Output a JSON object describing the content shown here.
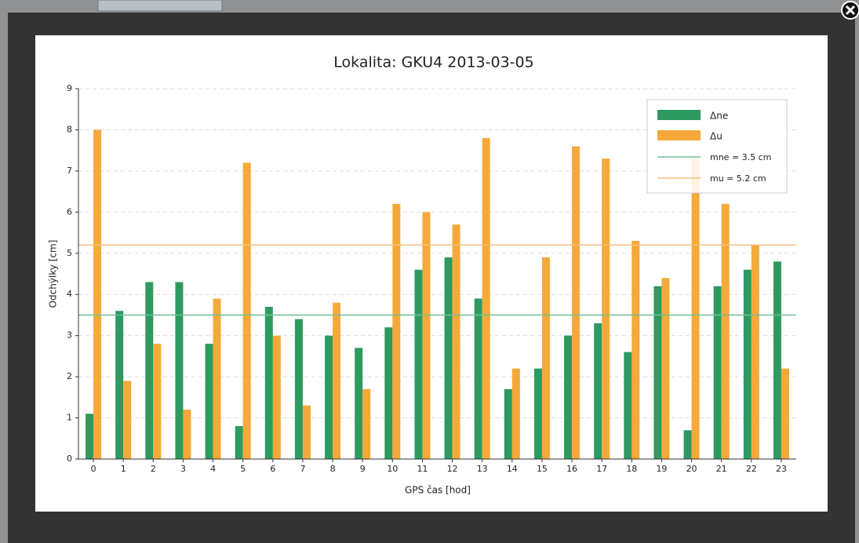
{
  "chart_data": {
    "type": "bar",
    "title": "Lokalita: GKU4  2013-03-05",
    "xlabel": "GPS čas [hod]",
    "ylabel": "Odchýlky [cm]",
    "categories": [
      "0",
      "1",
      "2",
      "3",
      "4",
      "5",
      "6",
      "7",
      "8",
      "9",
      "10",
      "11",
      "12",
      "13",
      "14",
      "15",
      "16",
      "17",
      "18",
      "19",
      "20",
      "21",
      "22",
      "23"
    ],
    "series": [
      {
        "name": "Δne",
        "color": "#2e9a60",
        "values": [
          1.1,
          3.6,
          4.3,
          4.3,
          2.8,
          0.8,
          3.7,
          3.4,
          3.0,
          2.7,
          3.2,
          4.6,
          4.9,
          3.9,
          1.7,
          2.2,
          3.0,
          3.3,
          2.6,
          4.2,
          0.7,
          4.2,
          4.6,
          4.8
        ]
      },
      {
        "name": "Δu",
        "color": "#f5a93a",
        "values": [
          8.0,
          1.9,
          2.8,
          1.2,
          3.9,
          7.2,
          3.0,
          1.3,
          3.8,
          1.7,
          6.2,
          6.0,
          5.7,
          7.8,
          2.2,
          4.9,
          7.6,
          7.3,
          5.3,
          4.4,
          7.3,
          6.2,
          5.2,
          2.2
        ]
      }
    ],
    "reference_lines": [
      {
        "value": 3.5,
        "label": "mne =  3.5 cm",
        "color": "#6dc096"
      },
      {
        "value": 5.2,
        "label": "mu  =  5.2 cm",
        "color": "#f7c07e"
      }
    ],
    "ylim": [
      0,
      9
    ],
    "yticks": [
      0,
      1,
      2,
      3,
      4,
      5,
      6,
      7,
      8,
      9
    ],
    "grid": true,
    "legend": "upper right"
  }
}
